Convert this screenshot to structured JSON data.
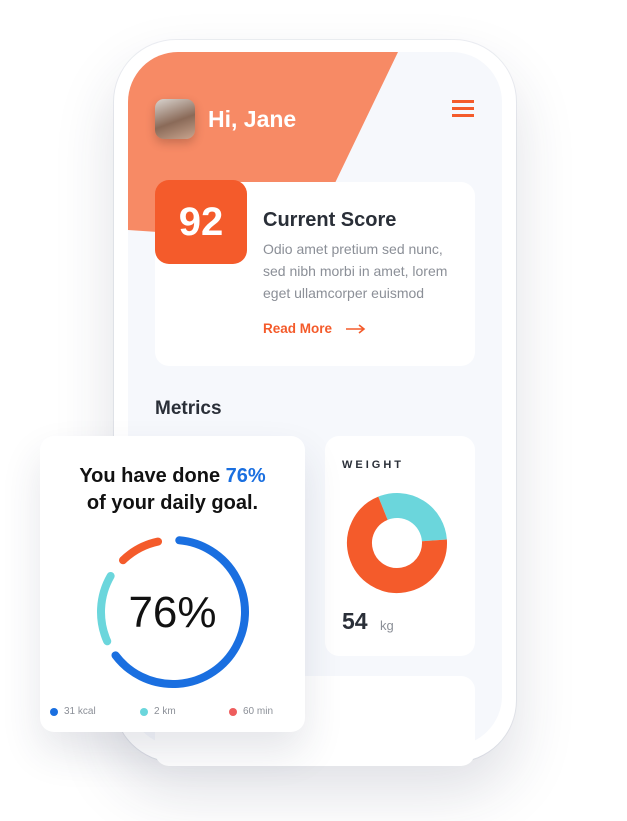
{
  "header": {
    "greeting": "Hi, Jane",
    "avatar": "user-photo",
    "menu_icon": "hamburger-menu-icon"
  },
  "score": {
    "value": "92",
    "title": "Current Score",
    "body": "Odio amet pretium sed nunc, sed nibh morbi in amet, lorem eget ullamcorper euismod",
    "link": "Read More",
    "link_icon": "arrow-right-icon"
  },
  "metrics": {
    "heading": "Metrics"
  },
  "goal": {
    "line1_prefix": "You have done ",
    "line1_value": "76%",
    "line2": "of your daily goal.",
    "center": "76%",
    "progress_percent": 76,
    "legend": [
      {
        "label": "31 kcal",
        "color": "#1a6fe0"
      },
      {
        "label": "2 km",
        "color": "#6bd6dc"
      },
      {
        "label": "60 min",
        "color": "#ee5d5d"
      }
    ]
  },
  "weight": {
    "label": "WEIGHT",
    "value": "54",
    "unit": "kg",
    "donut": [
      {
        "color": "#6bd6dc",
        "share": 0.3
      },
      {
        "color": "#f45b2b",
        "share": 0.7
      }
    ]
  },
  "colors": {
    "accent": "#f45b2b",
    "header": "#f78a65",
    "blue": "#1a6fe0",
    "teal": "#6bd6dc"
  }
}
